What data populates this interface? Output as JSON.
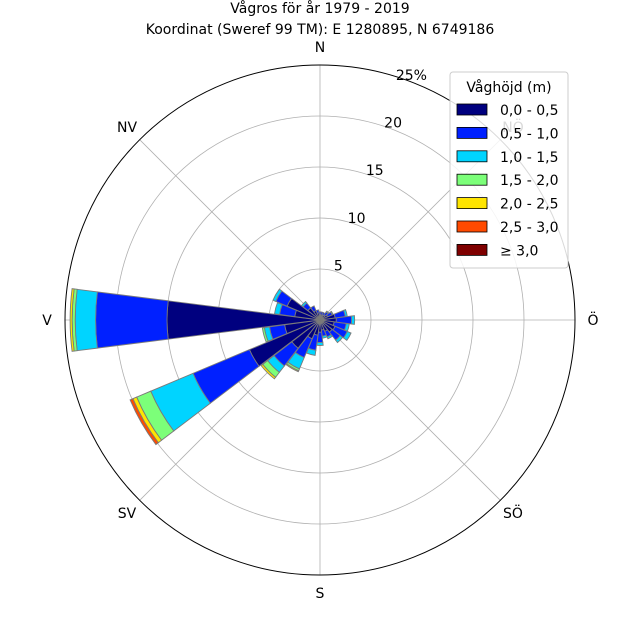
{
  "chart_data": {
    "type": "windrose",
    "title": "Vågros för år 1979 - 2019",
    "subtitle": "Koordinat (Sweref 99 TM): E 1280895, N 6749186",
    "directions": [
      "N",
      "NV",
      "V",
      "SV",
      "S",
      "SÖ",
      "Ö",
      "NÖ"
    ],
    "radial_ticks": [
      "5",
      "10",
      "15",
      "20",
      "25%"
    ],
    "radial_max": 25,
    "legend_title": "Våghöjd (m)",
    "legend_position": "top-right",
    "grid": true,
    "bins": [
      {
        "label": "0,0 - 0,5",
        "color": "#00007f"
      },
      {
        "label": "0,5 - 1,0",
        "color": "#0020ff"
      },
      {
        "label": "1,0 - 1,5",
        "color": "#00d4ff"
      },
      {
        "label": "1,5 - 2,0",
        "color": "#7cff79"
      },
      {
        "label": "2,0 - 2,5",
        "color": "#ffe500"
      },
      {
        "label": "2,5 - 3,0",
        "color": "#ff4a00"
      },
      {
        "label": "≥ 3,0",
        "color": "#7f0000"
      }
    ],
    "sectors": [
      {
        "angle": 0,
        "values": [
          0.5,
          0.3,
          0,
          0,
          0,
          0,
          0
        ]
      },
      {
        "angle": 15,
        "values": [
          0.5,
          0.3,
          0,
          0,
          0,
          0,
          0
        ]
      },
      {
        "angle": 30,
        "values": [
          0.5,
          0.3,
          0,
          0,
          0,
          0,
          0
        ]
      },
      {
        "angle": 45,
        "values": [
          0.6,
          0.4,
          0.1,
          0,
          0,
          0,
          0
        ]
      },
      {
        "angle": 60,
        "values": [
          0.8,
          0.5,
          0.1,
          0,
          0,
          0,
          0
        ]
      },
      {
        "angle": 75,
        "values": [
          1.5,
          1.0,
          0.2,
          0,
          0,
          0,
          0
        ]
      },
      {
        "angle": 90,
        "values": [
          1.6,
          1.5,
          0.3,
          0,
          0,
          0,
          0
        ]
      },
      {
        "angle": 105,
        "values": [
          1.4,
          1.2,
          0.3,
          0,
          0,
          0,
          0
        ]
      },
      {
        "angle": 120,
        "values": [
          1.6,
          1.3,
          0.4,
          0,
          0,
          0,
          0
        ]
      },
      {
        "angle": 135,
        "values": [
          1.5,
          1.0,
          0.3,
          0,
          0,
          0,
          0
        ]
      },
      {
        "angle": 150,
        "values": [
          1.2,
          0.6,
          0.2,
          0,
          0,
          0,
          0
        ]
      },
      {
        "angle": 165,
        "values": [
          1.0,
          0.6,
          0.2,
          0,
          0,
          0,
          0
        ]
      },
      {
        "angle": 180,
        "values": [
          1.2,
          1.0,
          0.3,
          0,
          0,
          0,
          0
        ]
      },
      {
        "angle": 195,
        "values": [
          1.5,
          1.5,
          0.5,
          0,
          0,
          0,
          0
        ]
      },
      {
        "angle": 210,
        "values": [
          2.0,
          2.0,
          1.2,
          0.2,
          0.1,
          0,
          0
        ]
      },
      {
        "angle": 225,
        "values": [
          3.5,
          2.2,
          0.8,
          0.6,
          0.2,
          0,
          0
        ]
      },
      {
        "angle": 240,
        "values": [
          7.5,
          6.0,
          4.5,
          1.5,
          0.4,
          0.3,
          0
        ]
      },
      {
        "angle": 255,
        "values": [
          3.5,
          1.5,
          0.5,
          0.2,
          0,
          0,
          0
        ]
      },
      {
        "angle": 270,
        "values": [
          15.0,
          7.0,
          2.0,
          0.3,
          0.2,
          0,
          0
        ]
      },
      {
        "angle": 285,
        "values": [
          2.5,
          1.5,
          0.5,
          0,
          0,
          0,
          0
        ]
      },
      {
        "angle": 300,
        "values": [
          3.5,
          1.2,
          0.3,
          0,
          0,
          0,
          0
        ]
      },
      {
        "angle": 315,
        "values": [
          1.5,
          0.6,
          0.2,
          0,
          0,
          0,
          0
        ]
      },
      {
        "angle": 330,
        "values": [
          1.0,
          0.5,
          0,
          0,
          0,
          0,
          0
        ]
      },
      {
        "angle": 345,
        "values": [
          0.7,
          0.3,
          0,
          0,
          0,
          0,
          0
        ]
      }
    ]
  }
}
